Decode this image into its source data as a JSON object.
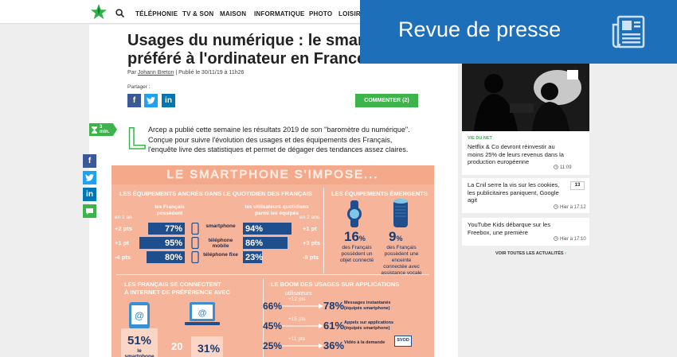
{
  "nav": {
    "items": [
      "TÉLÉPHONIE",
      "TV & SON",
      "MAISON",
      "INFORMATIQUE",
      "PHOTO",
      "LOISIRS"
    ]
  },
  "banner": {
    "title": "Revue de presse"
  },
  "article": {
    "title": [
      "Usages du numérique : le smartphone",
      "préféré à l'ordinateur en France"
    ],
    "byline": {
      "prefix": "Par",
      "author": "Johann Breton",
      "separator": "|",
      "published": "Publié le 30/11/19 à 11h26"
    },
    "share_label": "Partager :",
    "share": {
      "facebook": "f",
      "linkedin": "in"
    },
    "comment_button": "COMMENTER (2)",
    "reading_time": [
      "3",
      "min."
    ],
    "drop_cap": "L",
    "lead": "Arcep a publié cette semaine les résultats 2019 de son \"baromètre du numérique\". Conçue pour suivre l'évolution des usages et des équipements des Français, l'enquête livre des statistiques et permet de dégager des tendances assez claires."
  },
  "infographic": {
    "title": "LE SMARTPHONE S'IMPOSE...",
    "equipment": {
      "heading": "LES ÉQUIPEMENTS ANCRÉS DANS LE QUOTIDIEN DES FRANÇAIS",
      "owners_label": "les Français possèdent",
      "daily_label": "les utilisateurs quotidiens parmi les équipés",
      "period_1": "en 1 an",
      "period_2": "en 2 ans",
      "rows": [
        {
          "change_1y": "+2 pts",
          "owners": "77%",
          "device": "smartphone",
          "daily": "94%",
          "change_2y": "+1 pt"
        },
        {
          "change_1y": "+1 pt",
          "owners": "95%",
          "device": "téléphone mobile",
          "daily": "86%",
          "change_2y": "+3 pts"
        },
        {
          "change_1y": "-4 pts",
          "owners": "80%",
          "device": "téléphone fixe",
          "daily": "23%",
          "change_2y": "-8 pts"
        }
      ]
    },
    "emerging": {
      "heading": "LES ÉQUIPEMENTS ÉMERGENTS",
      "items": [
        {
          "value": "16",
          "unit": "%",
          "caption": "des Français possèdent un objet connecté"
        },
        {
          "value": "9",
          "unit": "%",
          "caption": "des Français possèdent une enceinte connectée avec assistance vocale"
        }
      ]
    },
    "connect": {
      "heading": [
        "LES FRANÇAIS SE CONNECTENT",
        "À INTERNET DE PRÉFÉRENCE AVEC"
      ],
      "smartphone_value": "51%",
      "smartphone_label": "le smartphone",
      "other_value": "20",
      "computer_value": "31%"
    },
    "apps": {
      "heading": "LE BOOM DES USAGES SUR APPLICATIONS",
      "users_label": "utilisateurs",
      "rows": [
        {
          "before": "66%",
          "change": "+12 pts",
          "after": "78%",
          "label": [
            "Messages instantanés",
            "(équipés smartphone)"
          ]
        },
        {
          "before": "45%",
          "change": "+15 pts",
          "after": "61%",
          "label": [
            "Appels sur applications",
            "(équipés smartphone)"
          ]
        },
        {
          "before": "25%",
          "change": "+11 pts",
          "after": "36%",
          "label": [
            "Vidéo à la demande"
          ],
          "badge": "SVOD"
        }
      ]
    }
  },
  "sidebar": {
    "image_badge": "2",
    "news": [
      {
        "category": "VIE DU NET",
        "title": "Netflix & Co devront réinvestir au moins 25% de leurs revenus dans la production européenne",
        "time": "11:09"
      },
      {
        "title": "La Cnil serre la vis sur les cookies, les publicitaires paniquent, Google agit",
        "comments": "13",
        "time": "Hier à 17:12"
      },
      {
        "title": "YouTube Kids débarque sur les Freebox, une première",
        "time": "Hier à 17:10"
      }
    ],
    "see_all": "VOIR TOUTES LES ACTUALITÉS"
  }
}
